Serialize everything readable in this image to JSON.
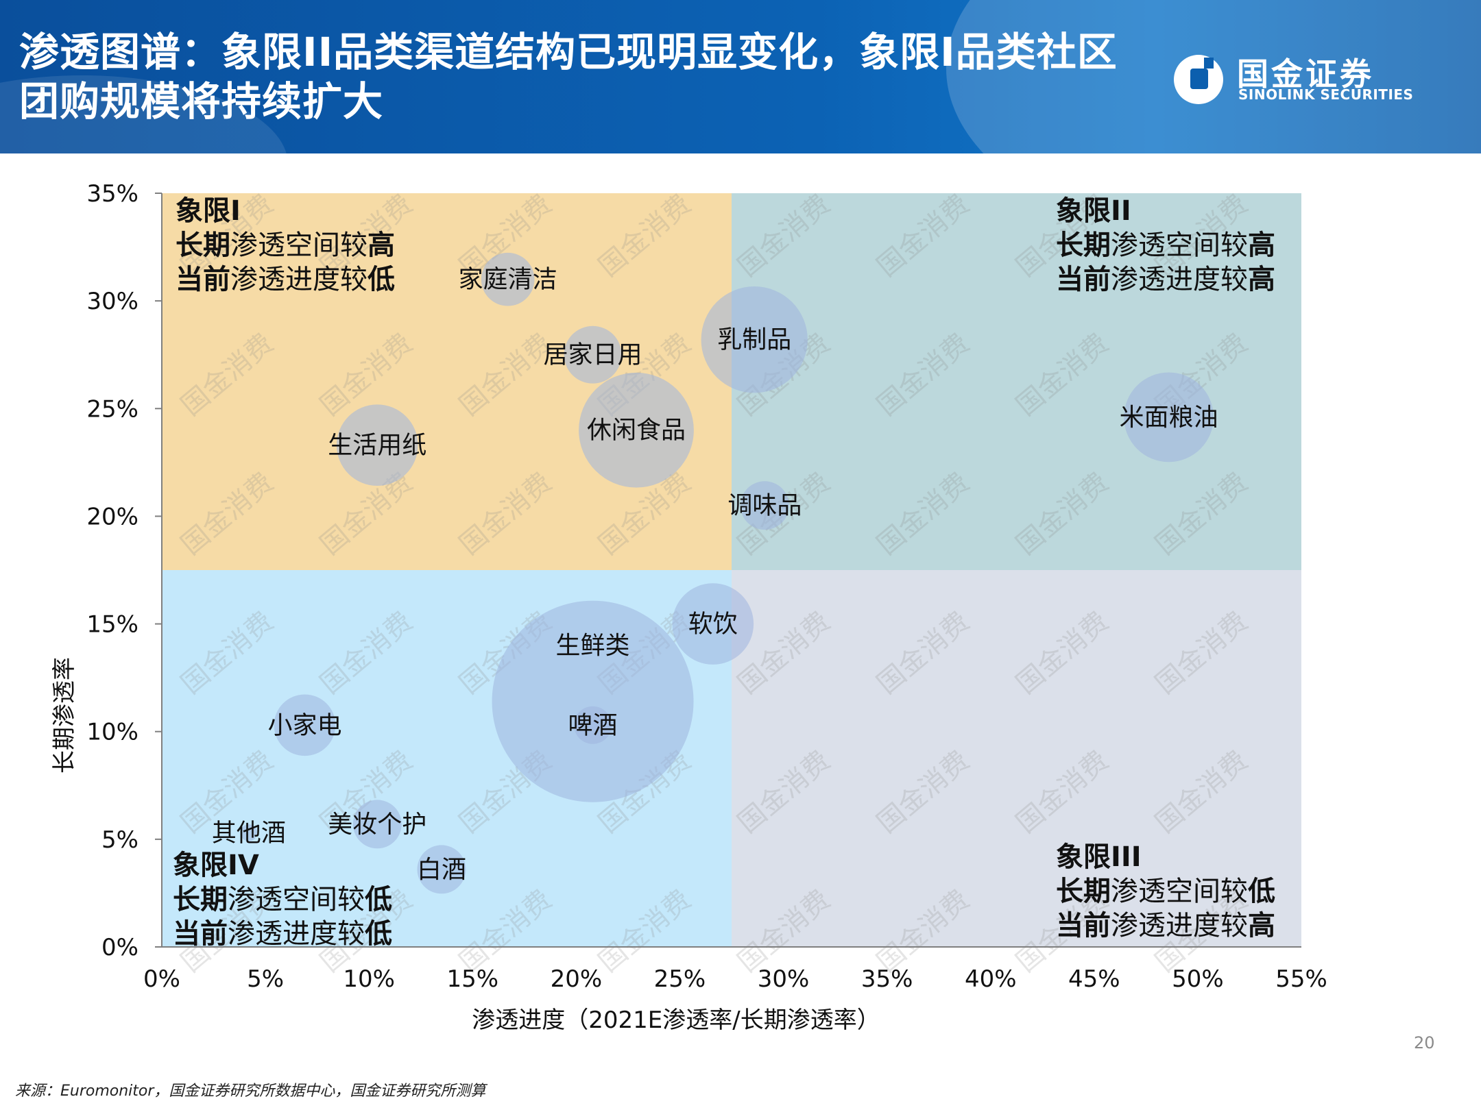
{
  "header": {
    "title": "渗透图谱：象限II品类渠道结构已现明显变化，象限I品类社区团购规模将持续扩大",
    "logo_cn": "国金证券",
    "logo_en": "SINOLINK SECURITIES"
  },
  "watermark": "国金消费",
  "page_number": "20",
  "source": "来源：Euromonitor，国金证券研究所数据中心，国金证券研究所测算",
  "colors": {
    "header_bg": "#0c5fae",
    "quadrant_I": "#f6dba6",
    "quadrant_II": "#bcd8dc",
    "quadrant_III": "#dbe0ea",
    "quadrant_IV": "#c4e8fb",
    "bubble": "#9fb4df"
  },
  "quadrants": {
    "q1": {
      "name": "象限I",
      "line1_b": "长期",
      "line1_n": "渗透空间较",
      "line1_e": "高",
      "line2_b": "当前",
      "line2_n": "渗透进度较",
      "line2_e": "低"
    },
    "q2": {
      "name": "象限II",
      "line1_b": "长期",
      "line1_n": "渗透空间较",
      "line1_e": "高",
      "line2_b": "当前",
      "line2_n": "渗透进度较",
      "line2_e": "高"
    },
    "q3": {
      "name": "象限III",
      "line1_b": "长期",
      "line1_n": "渗透空间较",
      "line1_e": "低",
      "line2_b": "当前",
      "line2_n": "渗透进度较",
      "line2_e": "高"
    },
    "q4": {
      "name": "象限IV",
      "line1_b": "长期",
      "line1_n": "渗透空间较",
      "line1_e": "低",
      "line2_b": "当前",
      "line2_n": "渗透进度较",
      "line2_e": "低"
    }
  },
  "chart_data": {
    "type": "scatter",
    "xlabel": "渗透进度（2021E渗透率/长期渗透率）",
    "ylabel": "长期渗透率",
    "xlim": [
      0,
      55
    ],
    "ylim": [
      0,
      35
    ],
    "x_ticks": [
      "0%",
      "5%",
      "10%",
      "15%",
      "20%",
      "25%",
      "30%",
      "35%",
      "40%",
      "45%",
      "50%",
      "55%"
    ],
    "y_ticks": [
      "0%",
      "5%",
      "10%",
      "15%",
      "20%",
      "25%",
      "30%",
      "35%"
    ],
    "quadrant_split": {
      "x": 27.5,
      "y": 17.5
    },
    "grid": false,
    "points": [
      {
        "name": "家庭清洁",
        "x": 16.7,
        "y": 31.0,
        "size": 3.0
      },
      {
        "name": "乳制品",
        "x": 28.6,
        "y": 28.2,
        "size": 12.0
      },
      {
        "name": "居家日用",
        "x": 20.8,
        "y": 27.5,
        "size": 3.5
      },
      {
        "name": "休闲食品",
        "x": 22.9,
        "y": 24.0,
        "size": 14.0
      },
      {
        "name": "生活用纸",
        "x": 10.4,
        "y": 23.3,
        "size": 7.0
      },
      {
        "name": "米面粮油",
        "x": 48.6,
        "y": 24.6,
        "size": 8.5
      },
      {
        "name": "调味品",
        "x": 29.1,
        "y": 20.5,
        "size": 2.5
      },
      {
        "name": "软饮",
        "x": 26.6,
        "y": 15.0,
        "size": 7.0
      },
      {
        "name": "生鲜类",
        "x": 20.8,
        "y": 11.4,
        "size": 43.0
      },
      {
        "name": "啤酒",
        "x": 20.8,
        "y": 10.3,
        "size": 1.5
      },
      {
        "name": "小家电",
        "x": 6.9,
        "y": 10.3,
        "size": 4.0
      },
      {
        "name": "美妆个护",
        "x": 10.4,
        "y": 5.7,
        "size": 2.5
      },
      {
        "name": "其他酒",
        "x": 4.2,
        "y": 5.3,
        "size": 0.3
      },
      {
        "name": "白酒",
        "x": 13.5,
        "y": 3.6,
        "size": 2.5
      }
    ]
  }
}
